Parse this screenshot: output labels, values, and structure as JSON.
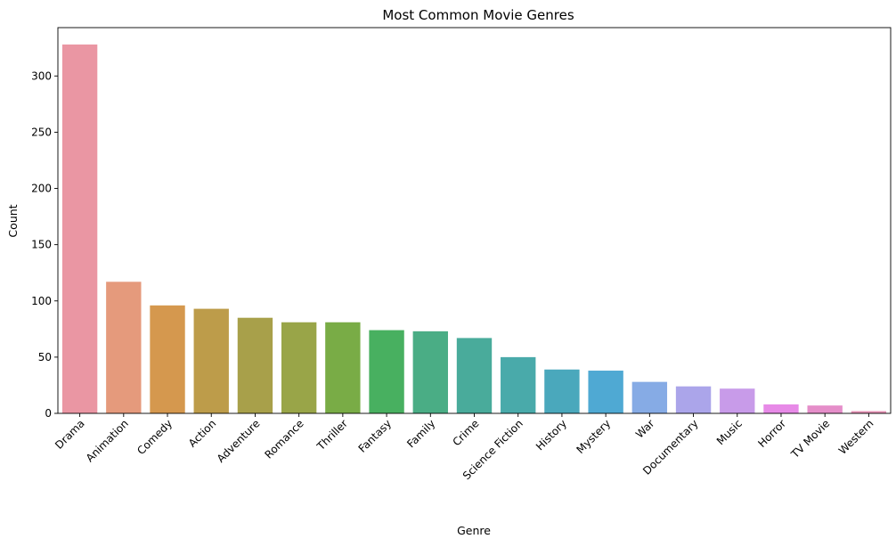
{
  "chart_data": {
    "type": "bar",
    "title": "Most Common Movie Genres",
    "xlabel": "Genre",
    "ylabel": "Count",
    "ylim": [
      0,
      343
    ],
    "yticks": [
      0,
      50,
      100,
      150,
      200,
      250,
      300
    ],
    "grid": false,
    "legend": "none",
    "categories": [
      "Drama",
      "Animation",
      "Comedy",
      "Action",
      "Adventure",
      "Romance",
      "Thriller",
      "Fantasy",
      "Family",
      "Crime",
      "Science Fiction",
      "History",
      "Mystery",
      "War",
      "Documentary",
      "Music",
      "Horror",
      "TV Movie",
      "Western"
    ],
    "values": [
      328,
      117,
      96,
      93,
      85,
      81,
      81,
      74,
      73,
      67,
      50,
      39,
      38,
      28,
      24,
      22,
      8,
      7,
      2
    ],
    "colors": [
      "#ea96a3",
      "#e59a7c",
      "#d5984e",
      "#bd9c4a",
      "#a8a04a",
      "#99a548",
      "#79ac46",
      "#48b060",
      "#4aad85",
      "#49ab9b",
      "#49aaaa",
      "#4aa8bc",
      "#4fa9d3",
      "#86abe5",
      "#aba5ea",
      "#c89be9",
      "#e78ae7",
      "#e58ec9",
      "#e592b5"
    ]
  }
}
